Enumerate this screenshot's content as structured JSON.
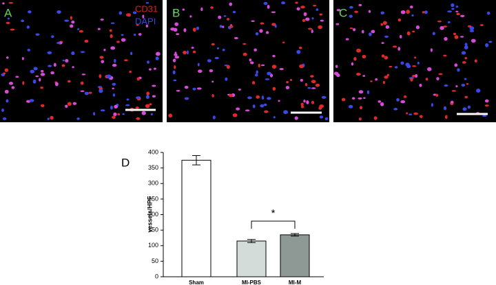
{
  "image_panels": {
    "labels": [
      "A",
      "B",
      "C"
    ],
    "stain_labels": [
      "CD31",
      "DAPI"
    ]
  },
  "chart_data": {
    "type": "bar",
    "panel_label": "D",
    "y_label": "vessels/HPF",
    "categories": [
      "Sham",
      "MI-PBS",
      "MI-M"
    ],
    "values": [
      375,
      115,
      135
    ],
    "errors": [
      15,
      5,
      4
    ],
    "colors": [
      "#ffffff",
      "#d3dcd8",
      "#8e9996"
    ],
    "ylim": [
      0,
      400
    ],
    "yticks": [
      0,
      50,
      100,
      150,
      200,
      250,
      300,
      350,
      400
    ],
    "annotation": "*"
  }
}
